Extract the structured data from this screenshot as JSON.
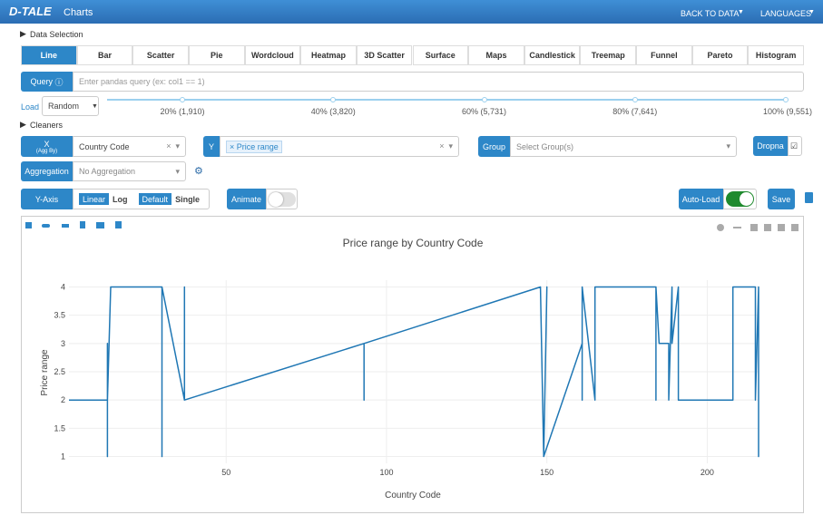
{
  "header": {
    "brand": "D-TALE",
    "title": "Charts",
    "nav": [
      "BACK TO DATA",
      "LANGUAGES"
    ]
  },
  "sections": {
    "data_selection": "Data Selection",
    "cleaners": "Cleaners"
  },
  "tabs": [
    "Line",
    "Bar",
    "Scatter",
    "Pie",
    "Wordcloud",
    "Heatmap",
    "3D Scatter",
    "Surface",
    "Maps",
    "Candlestick",
    "Treemap",
    "Funnel",
    "Pareto",
    "Histogram"
  ],
  "query": {
    "label": "Query",
    "placeholder": "Enter pandas query (ex: col1 == 1)"
  },
  "load": {
    "label": "Load",
    "mode": "Random",
    "steps": [
      "20% (1,910)",
      "40% (3,820)",
      "60% (5,731)",
      "80% (7,641)",
      "100% (9,551)"
    ]
  },
  "x": {
    "label": "X",
    "sublabel": "(Agg By)",
    "value": "Country Code"
  },
  "y": {
    "label": "Y",
    "value": "Price range"
  },
  "group": {
    "label": "Group",
    "placeholder": "Select Group(s)"
  },
  "dropna": "Dropna",
  "aggregation": {
    "label": "Aggregation",
    "value": "No Aggregation"
  },
  "y_axis": {
    "label": "Y-Axis",
    "scale": [
      "Linear",
      "Log"
    ],
    "mode": [
      "Default",
      "Single"
    ]
  },
  "animate": "Animate",
  "auto_load": "Auto-Load",
  "save": "Save",
  "chart_data": {
    "type": "line",
    "title": "Price range by Country Code",
    "x_label": "Country Code",
    "y_label": "Price range",
    "x": [
      1,
      13,
      13,
      13,
      13,
      14,
      30,
      30,
      30,
      37,
      37,
      37,
      93,
      93,
      93,
      148,
      149,
      150,
      149,
      161,
      161,
      161,
      165,
      165,
      166,
      184,
      184,
      184,
      185,
      188,
      188,
      189,
      189,
      191,
      191,
      208,
      208,
      209,
      215,
      215,
      216,
      216,
      216
    ],
    "values": [
      2,
      2,
      1,
      3,
      2,
      4,
      4,
      1,
      4,
      2,
      4,
      2,
      3,
      2,
      3,
      4,
      1,
      4,
      1,
      3,
      2,
      4,
      2,
      4,
      4,
      4,
      2,
      4,
      3,
      3,
      2,
      4,
      3,
      4,
      2,
      2,
      4,
      4,
      4,
      2,
      4,
      1,
      4
    ],
    "color": "#1f77b4",
    "xlim": [
      1,
      216
    ],
    "ylim": [
      0.88,
      4.12
    ],
    "xticks": [
      50,
      100,
      150,
      200
    ],
    "yticks": [
      1,
      1.5,
      2,
      2.5,
      3,
      3.5,
      4
    ],
    "grid": true
  }
}
